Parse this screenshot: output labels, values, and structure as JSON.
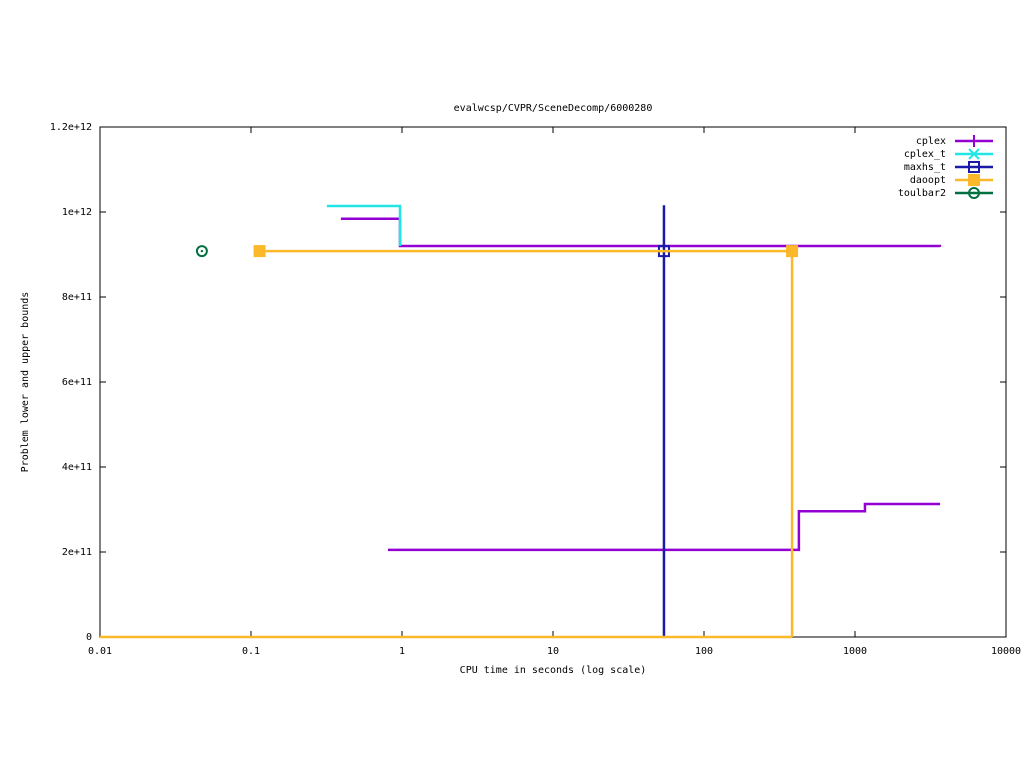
{
  "chart_data": {
    "type": "step",
    "title": "evalwcsp/CVPR/SceneDecomp/6000280",
    "x_label": "CPU time in seconds (log scale)",
    "y_label": "Problem lower and upper bounds",
    "xscale": "log",
    "xlim": [
      0.01,
      10000
    ],
    "xticks": [
      0.01,
      0.1,
      1,
      10,
      100,
      1000,
      10000
    ],
    "ylim": [
      0,
      1200000000000
    ],
    "yticks": [
      0,
      {
        "value": 200000000000,
        "label": "2e+11"
      },
      {
        "value": 400000000000,
        "label": "4e+11"
      },
      {
        "value": 600000000000,
        "label": "6e+11"
      },
      {
        "value": 800000000000,
        "label": "8e+11"
      },
      {
        "value": 1000000000000,
        "label": "1e+12"
      },
      {
        "value": 1200000000000,
        "label": "1.2e+12"
      }
    ],
    "legend": "top-right",
    "series": [
      {
        "name": "cplex",
        "color": "#9400d3",
        "marker": "plus",
        "x": [
          0.394,
          0.97,
          3650,
          null,
          0.807,
          425,
          1164,
          3656
        ],
        "values": [
          984000000000,
          920000000000,
          918000000000,
          null,
          205000000000,
          296000000000,
          313000000000,
          313000000000
        ],
        "marker_x": [],
        "marker_values": []
      },
      {
        "name": "cplex_t",
        "color": "#22e6e6",
        "marker": "cross",
        "x": [
          0.318,
          0.97
        ],
        "values": [
          1014000000000,
          920000000000
        ],
        "marker_x": [],
        "marker_values": []
      },
      {
        "name": "maxhs_t",
        "color": "#1a1aa6",
        "marker": "open-square",
        "x": [
          54.3,
          54.3
        ],
        "values": [
          1016000000000,
          0
        ],
        "marker_x": [
          54.3
        ],
        "marker_values": [
          908000000000
        ]
      },
      {
        "name": "daoopt",
        "color": "#fbb829",
        "marker": "filled-square",
        "x": [
          0.114,
          383,
          383,
          null,
          0.01,
          383
        ],
        "values": [
          908000000000,
          908000000000,
          0,
          null,
          0,
          0
        ],
        "marker_x": [
          0.114,
          383
        ],
        "marker_values": [
          908000000000,
          908000000000
        ]
      },
      {
        "name": "toulbar2",
        "color": "#007040",
        "marker": "dot-circle",
        "x": [],
        "values": [],
        "marker_x": [
          0.0473
        ],
        "marker_values": [
          908000000000
        ]
      }
    ]
  }
}
